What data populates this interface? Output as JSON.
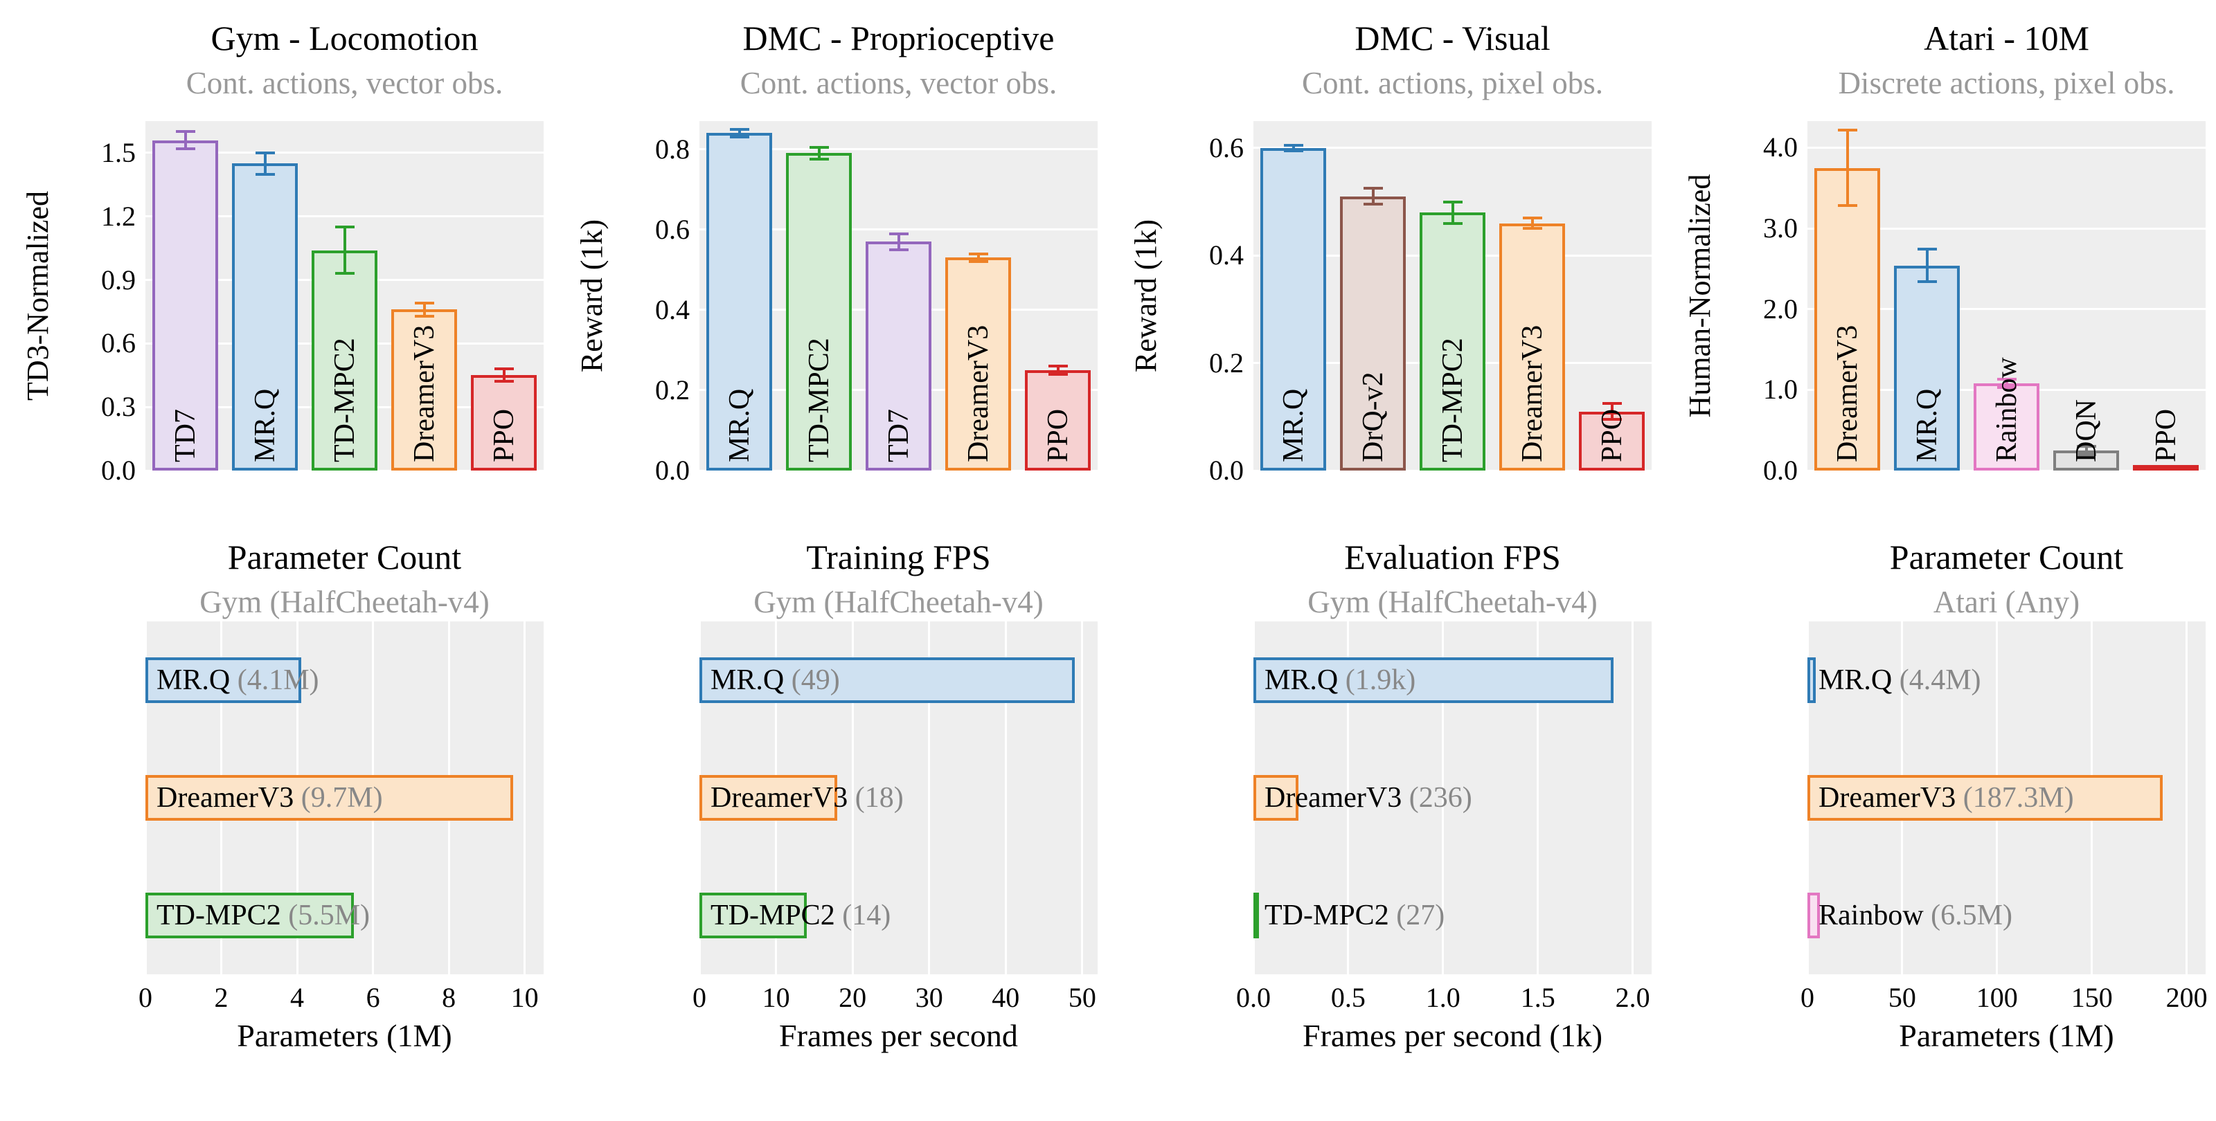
{
  "figure": {
    "background": "#ffffff",
    "plot_background": "#eeeeee",
    "grid_color": "#ffffff",
    "subtitle_color": "#999999",
    "annotation_color": "#888888"
  },
  "palette": {
    "TD7": {
      "edge": "#9467bd",
      "fill": "#e7ddf2"
    },
    "MR.Q": {
      "edge": "#2f7bb5",
      "fill": "#cfe1f1"
    },
    "TD-MPC2": {
      "edge": "#2ca02c",
      "fill": "#d6ecd6"
    },
    "DreamerV3": {
      "edge": "#ee8227",
      "fill": "#fce4c9"
    },
    "PPO": {
      "edge": "#d62728",
      "fill": "#f6d1d1"
    },
    "DrQ-v2": {
      "edge": "#8c564b",
      "fill": "#e8dad6"
    },
    "Rainbow": {
      "edge": "#e377c2",
      "fill": "#f9e0f1"
    },
    "DQN": {
      "edge": "#7f7f7f",
      "fill": "#e3e3e3"
    }
  },
  "chart_data": [
    {
      "id": "gym-locomotion",
      "type": "bar",
      "orientation": "vertical",
      "title": "Gym - Locomotion",
      "subtitle": "Cont. actions, vector obs.",
      "ylabel": "TD3-Normalized",
      "ylim": [
        0,
        1.65
      ],
      "yticks": [
        "0.0",
        "0.3",
        "0.6",
        "0.9",
        "1.2",
        "1.5"
      ],
      "bars": [
        {
          "label": "TD7",
          "value": 1.56,
          "err": 0.04
        },
        {
          "label": "MR.Q",
          "value": 1.45,
          "err": 0.05
        },
        {
          "label": "TD-MPC2",
          "value": 1.04,
          "err": 0.11
        },
        {
          "label": "DreamerV3",
          "value": 0.76,
          "err": 0.03
        },
        {
          "label": "PPO",
          "value": 0.45,
          "err": 0.03
        }
      ]
    },
    {
      "id": "dmc-proprioceptive",
      "type": "bar",
      "orientation": "vertical",
      "title": "DMC - Proprioceptive",
      "subtitle": "Cont. actions, vector obs.",
      "ylabel": "Reward (1k)",
      "ylim": [
        0,
        0.87
      ],
      "yticks": [
        "0.0",
        "0.2",
        "0.4",
        "0.6",
        "0.8"
      ],
      "bars": [
        {
          "label": "MR.Q",
          "value": 0.84,
          "err": 0.01
        },
        {
          "label": "TD-MPC2",
          "value": 0.79,
          "err": 0.015
        },
        {
          "label": "TD7",
          "value": 0.57,
          "err": 0.02
        },
        {
          "label": "DreamerV3",
          "value": 0.53,
          "err": 0.01
        },
        {
          "label": "PPO",
          "value": 0.25,
          "err": 0.01
        }
      ]
    },
    {
      "id": "dmc-visual",
      "type": "bar",
      "orientation": "vertical",
      "title": "DMC - Visual",
      "subtitle": "Cont. actions, pixel obs.",
      "ylabel": "Reward (1k)",
      "ylim": [
        0,
        0.65
      ],
      "yticks": [
        "0.0",
        "0.2",
        "0.4",
        "0.6"
      ],
      "bars": [
        {
          "label": "MR.Q",
          "value": 0.6,
          "err": 0.005
        },
        {
          "label": "DrQ-v2",
          "value": 0.51,
          "err": 0.015
        },
        {
          "label": "TD-MPC2",
          "value": 0.48,
          "err": 0.02
        },
        {
          "label": "DreamerV3",
          "value": 0.46,
          "err": 0.01
        },
        {
          "label": "PPO",
          "value": 0.11,
          "err": 0.015
        }
      ]
    },
    {
      "id": "atari-10m",
      "type": "bar",
      "orientation": "vertical",
      "title": "Atari - 10M",
      "subtitle": "Discrete actions, pixel obs.",
      "ylabel": "Human-Normalized",
      "ylim": [
        0,
        4.33
      ],
      "yticks": [
        "0.0",
        "1.0",
        "2.0",
        "3.0",
        "4.0"
      ],
      "bars": [
        {
          "label": "DreamerV3",
          "value": 3.75,
          "err": 0.47
        },
        {
          "label": "MR.Q",
          "value": 2.54,
          "err": 0.2
        },
        {
          "label": "Rainbow",
          "value": 1.08,
          "err": 0.05
        },
        {
          "label": "DQN",
          "value": 0.25,
          "err": 0.05
        },
        {
          "label": "PPO",
          "value": 0.02,
          "err": 0
        }
      ]
    },
    {
      "id": "parameter-count-gym",
      "type": "bar",
      "orientation": "horizontal",
      "title": "Parameter Count",
      "subtitle": "Gym (HalfCheetah-v4)",
      "xlabel": "Parameters (1M)",
      "xlim": [
        0,
        10.5
      ],
      "xticks": [
        "0",
        "2",
        "4",
        "6",
        "8",
        "10"
      ],
      "bars": [
        {
          "label": "MR.Q",
          "value": 4.1,
          "annotation": "(4.1M)"
        },
        {
          "label": "DreamerV3",
          "value": 9.7,
          "annotation": "(9.7M)"
        },
        {
          "label": "TD-MPC2",
          "value": 5.5,
          "annotation": "(5.5M)"
        }
      ]
    },
    {
      "id": "training-fps",
      "type": "bar",
      "orientation": "horizontal",
      "title": "Training FPS",
      "subtitle": "Gym (HalfCheetah-v4)",
      "xlabel": "Frames per second",
      "xlim": [
        0,
        52
      ],
      "xticks": [
        "0",
        "10",
        "20",
        "30",
        "40",
        "50"
      ],
      "bars": [
        {
          "label": "MR.Q",
          "value": 49,
          "annotation": "(49)"
        },
        {
          "label": "DreamerV3",
          "value": 18,
          "annotation": "(18)"
        },
        {
          "label": "TD-MPC2",
          "value": 14,
          "annotation": "(14)"
        }
      ]
    },
    {
      "id": "evaluation-fps",
      "type": "bar",
      "orientation": "horizontal",
      "title": "Evaluation FPS",
      "subtitle": "Gym (HalfCheetah-v4)",
      "xlabel": "Frames per second (1k)",
      "xlim": [
        0,
        2.1
      ],
      "xticks": [
        "0.0",
        "0.5",
        "1.0",
        "1.5",
        "2.0"
      ],
      "bars": [
        {
          "label": "MR.Q",
          "value": 1.9,
          "annotation": "(1.9k)"
        },
        {
          "label": "DreamerV3",
          "value": 0.236,
          "annotation": "(236)"
        },
        {
          "label": "TD-MPC2",
          "value": 0.027,
          "annotation": "(27)"
        }
      ]
    },
    {
      "id": "parameter-count-atari",
      "type": "bar",
      "orientation": "horizontal",
      "title": "Parameter Count",
      "subtitle": "Atari (Any)",
      "xlabel": "Parameters (1M)",
      "xlim": [
        0,
        210
      ],
      "xticks": [
        "0",
        "50",
        "100",
        "150",
        "200"
      ],
      "bars": [
        {
          "label": "MR.Q",
          "value": 4.4,
          "annotation": "(4.4M)"
        },
        {
          "label": "DreamerV3",
          "value": 187.3,
          "annotation": "(187.3M)"
        },
        {
          "label": "Rainbow",
          "value": 6.5,
          "annotation": "(6.5M)"
        }
      ]
    }
  ]
}
